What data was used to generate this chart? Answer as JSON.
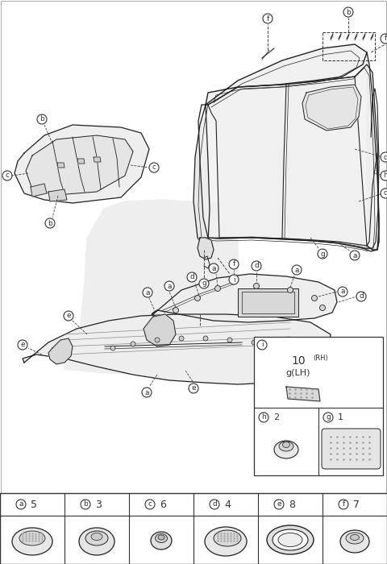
{
  "bg_color": "#ffffff",
  "line_color": "#333333",
  "car_color": "#222222",
  "figsize": [
    4.8,
    7.0
  ],
  "dpi": 100,
  "parts_bottom": [
    {
      "label": "a",
      "qty": "5"
    },
    {
      "label": "b",
      "qty": "3"
    },
    {
      "label": "c",
      "qty": "6"
    },
    {
      "label": "d",
      "qty": "4"
    },
    {
      "label": "e",
      "qty": "8"
    },
    {
      "label": "f",
      "qty": "7"
    }
  ],
  "side_box_labels": [
    {
      "label": "i",
      "text": "10(RH)\ng(LH)"
    },
    {
      "label": "h",
      "qty": "2"
    },
    {
      "label": "g",
      "qty": "1"
    }
  ]
}
